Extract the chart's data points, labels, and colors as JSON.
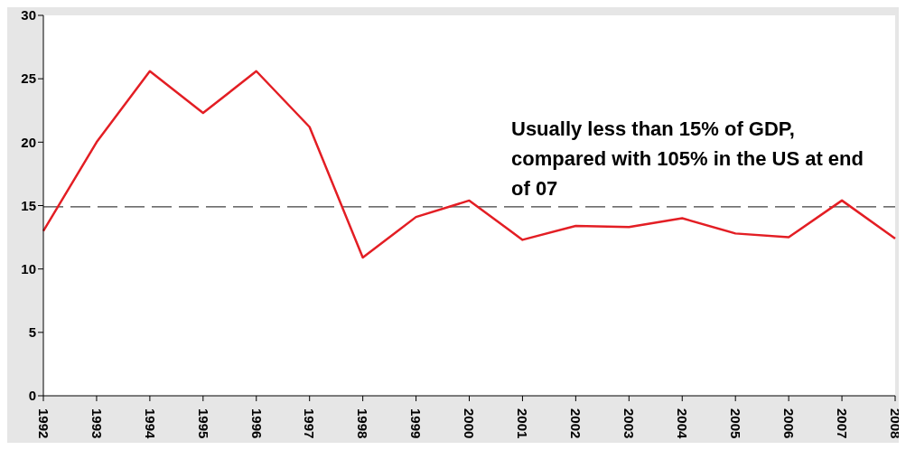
{
  "chart_data": {
    "type": "line",
    "categories": [
      "1992",
      "1993",
      "1994",
      "1995",
      "1996",
      "1997",
      "1998",
      "1999",
      "2000",
      "2001",
      "2002",
      "2003",
      "2004",
      "2005",
      "2006",
      "2007",
      "2008"
    ],
    "series": [
      {
        "color": "#e31e24",
        "values": [
          13.0,
          20.0,
          25.6,
          22.3,
          25.6,
          21.2,
          10.9,
          14.1,
          15.4,
          12.3,
          13.4,
          13.3,
          14.0,
          12.8,
          12.5,
          15.4,
          12.4
        ]
      }
    ],
    "ylim": [
      0,
      30
    ],
    "yticks": [
      0,
      5,
      10,
      15,
      20,
      25,
      30
    ],
    "ref_lines": [
      {
        "axis": "y",
        "value": 14.9,
        "color": "#404040",
        "line_style": "dashed"
      }
    ],
    "annotations": [
      "Usually less than 15% of GDP, compared with 105% in the US at end of 07"
    ],
    "grid": false,
    "legend": false,
    "marker": "none",
    "line_style": "solid"
  }
}
